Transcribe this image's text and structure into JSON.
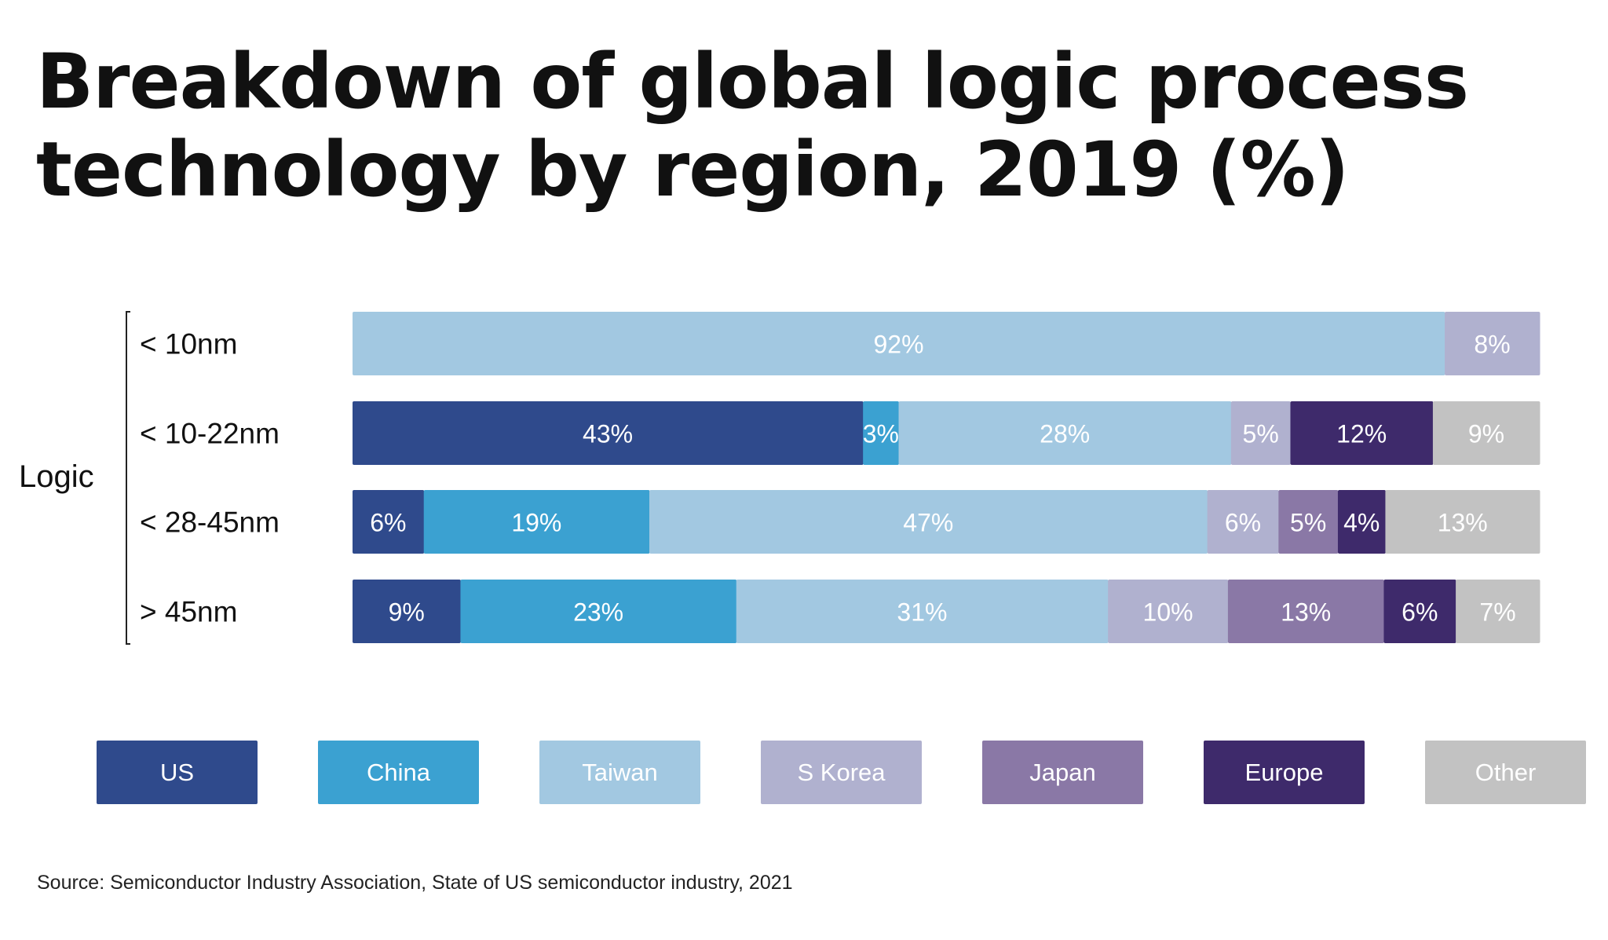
{
  "title": "Breakdown of global logic process technology by region, 2019 (%)",
  "source": "Source: Semiconductor Industry Association, State of US semiconductor industry, 2021",
  "chart_data": {
    "type": "bar",
    "orientation": "horizontal",
    "stacked": true,
    "group_label": "Logic",
    "categories": [
      "< 10nm",
      "< 10-22nm",
      "< 28-45nm",
      "> 45nm"
    ],
    "series": [
      {
        "name": "US",
        "color": "#2f4a8c",
        "values": [
          0,
          43,
          6,
          9
        ]
      },
      {
        "name": "China",
        "color": "#3ba1d1",
        "values": [
          0,
          3,
          19,
          23
        ]
      },
      {
        "name": "Taiwan",
        "color": "#a2c8e1",
        "values": [
          92,
          28,
          47,
          31
        ]
      },
      {
        "name": "S Korea",
        "color": "#b0b1cf",
        "values": [
          8,
          5,
          6,
          10
        ]
      },
      {
        "name": "Japan",
        "color": "#8a78a6",
        "values": [
          0,
          0,
          5,
          13
        ]
      },
      {
        "name": "Europe",
        "color": "#3e2a6b",
        "values": [
          0,
          12,
          4,
          6
        ]
      },
      {
        "name": "Other",
        "color": "#c2c2c2",
        "values": [
          0,
          9,
          13,
          7
        ]
      }
    ],
    "value_suffix": "%",
    "legend_position": "bottom",
    "grid": false
  }
}
